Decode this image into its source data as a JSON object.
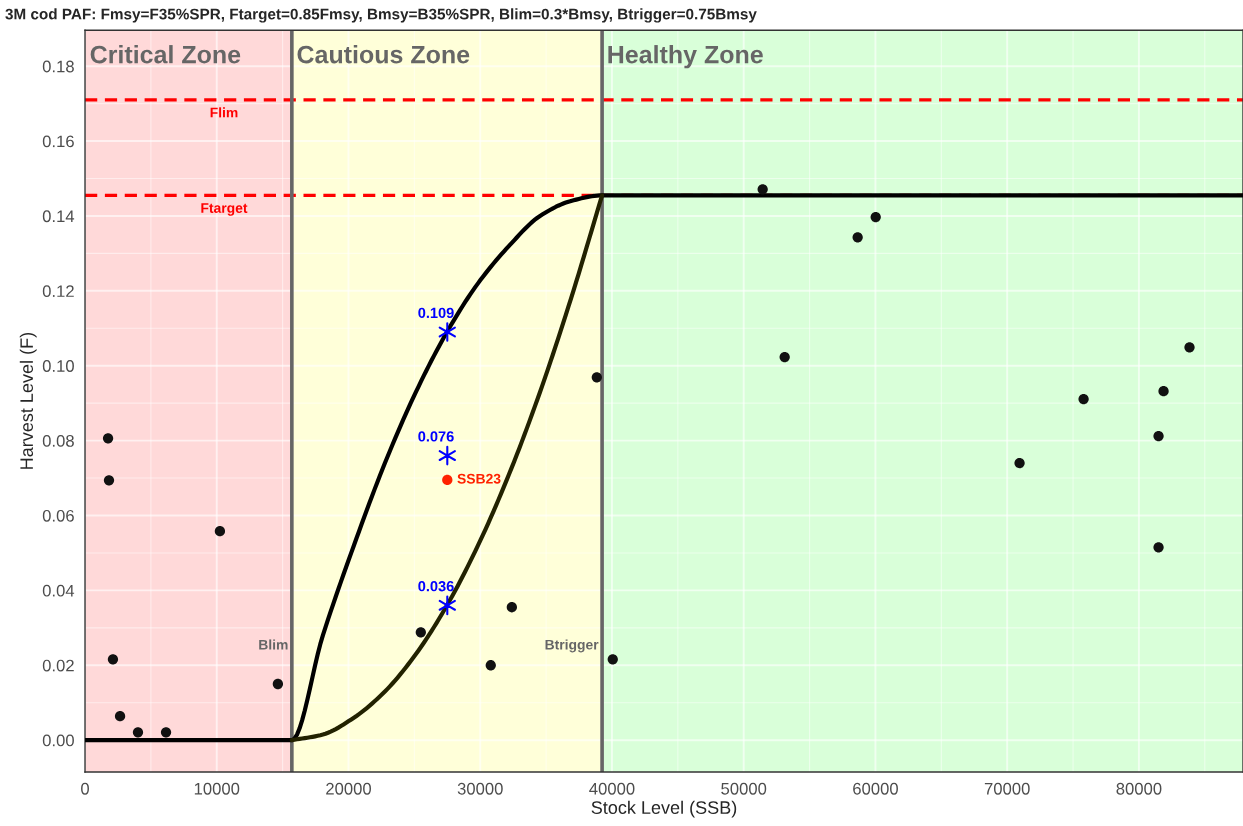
{
  "chart_data": {
    "type": "scatter",
    "title": "3M cod PAF: Fmsy=F35%SPR, Ftarget=0.85Fmsy, Bmsy=B35%SPR, Blim=0.3*Bmsy, Btrigger=0.75Bmsy",
    "xlabel": "Stock Level (SSB)",
    "ylabel": "Harvest Level (F)",
    "xlim": [
      0,
      87900
    ],
    "ylim": [
      -0.0085,
      0.1896
    ],
    "xticks": [
      0,
      10000,
      20000,
      30000,
      40000,
      50000,
      60000,
      70000,
      80000
    ],
    "yticks": [
      {
        "value": 0,
        "label": "0.00"
      },
      {
        "value": 0.02,
        "label": "0.02"
      },
      {
        "value": 0.04,
        "label": "0.04"
      },
      {
        "value": 0.06,
        "label": "0.06"
      },
      {
        "value": 0.08,
        "label": "0.08"
      },
      {
        "value": 0.1,
        "label": "0.10"
      },
      {
        "value": 0.12,
        "label": "0.12"
      },
      {
        "value": 0.14,
        "label": "0.14"
      },
      {
        "value": 0.16,
        "label": "0.16"
      },
      {
        "value": 0.18,
        "label": "0.18"
      }
    ],
    "grid": true,
    "legend": false,
    "bands": [
      {
        "axis": "x",
        "from": 0,
        "to": 15700,
        "label": "Critical Zone",
        "color": "#ffd9d9"
      },
      {
        "axis": "x",
        "from": 15700,
        "to": 39250,
        "label": "Cautious Zone",
        "color": "#ffffd9"
      },
      {
        "axis": "x",
        "from": 39250,
        "to": 87900,
        "label": "Healthy Zone",
        "color": "#d9ffd9"
      }
    ],
    "ref_lines": [
      {
        "axis": "y",
        "value": 0.171,
        "label": "Flim",
        "color": "#ff0000",
        "line_style": "dashed"
      },
      {
        "axis": "y",
        "value": 0.1455,
        "label": "Ftarget",
        "color": "#ff0000",
        "line_style": "dashed"
      },
      {
        "axis": "x",
        "value": 15700,
        "label": "Blim",
        "color": "#666666",
        "line_style": "solid"
      },
      {
        "axis": "x",
        "value": 39250,
        "label": "Btrigger",
        "color": "#666666",
        "line_style": "solid"
      }
    ],
    "series": [
      {
        "type": "line",
        "color": "#000000",
        "x": [
          0,
          15700,
          18055,
          20410,
          22765,
          25120,
          27475,
          29830,
          32185,
          34540,
          36895,
          39250,
          87900
        ],
        "values": [
          0,
          0,
          0.028,
          0.052,
          0.074,
          0.093,
          0.109,
          0.122,
          0.132,
          0.14,
          0.144,
          0.1455,
          0.1455
        ]
      },
      {
        "type": "line",
        "color": "#222200",
        "x": [
          15700,
          18055,
          20410,
          22765,
          25120,
          27475,
          29830,
          32185,
          34540,
          36895,
          39250
        ],
        "values": [
          0,
          0.0015,
          0.006,
          0.013,
          0.023,
          0.036,
          0.052,
          0.071,
          0.093,
          0.118,
          0.1455
        ]
      },
      {
        "color": "#111111",
        "marker": "circle",
        "x": [
          1750,
          1820,
          2120,
          2660,
          4020,
          6150,
          10240,
          14640,
          25490,
          30800,
          32400,
          38850,
          40060,
          51440,
          53110,
          58650,
          60020,
          70940,
          75800,
          81490,
          81870,
          81490,
          83840
        ],
        "values": [
          0.0806,
          0.0694,
          0.0216,
          0.0064,
          0.0021,
          0.0021,
          0.0558,
          0.015,
          0.0288,
          0.02,
          0.0355,
          0.0969,
          0.0216,
          0.1471,
          0.1023,
          0.1343,
          0.1397,
          0.074,
          0.0911,
          0.0812,
          0.0932,
          0.0515,
          0.1049
        ]
      },
      {
        "color": "#0000ff",
        "marker": "cross",
        "x": [
          27500,
          27500,
          27500
        ],
        "values": [
          0.109,
          0.076,
          0.036
        ],
        "value_labels": [
          "0.109",
          "0.076",
          "0.036"
        ]
      },
      {
        "color": "#ff2200",
        "marker": "circle",
        "name": "SSB23",
        "x": [
          27500
        ],
        "values": [
          0.0695
        ]
      }
    ]
  }
}
